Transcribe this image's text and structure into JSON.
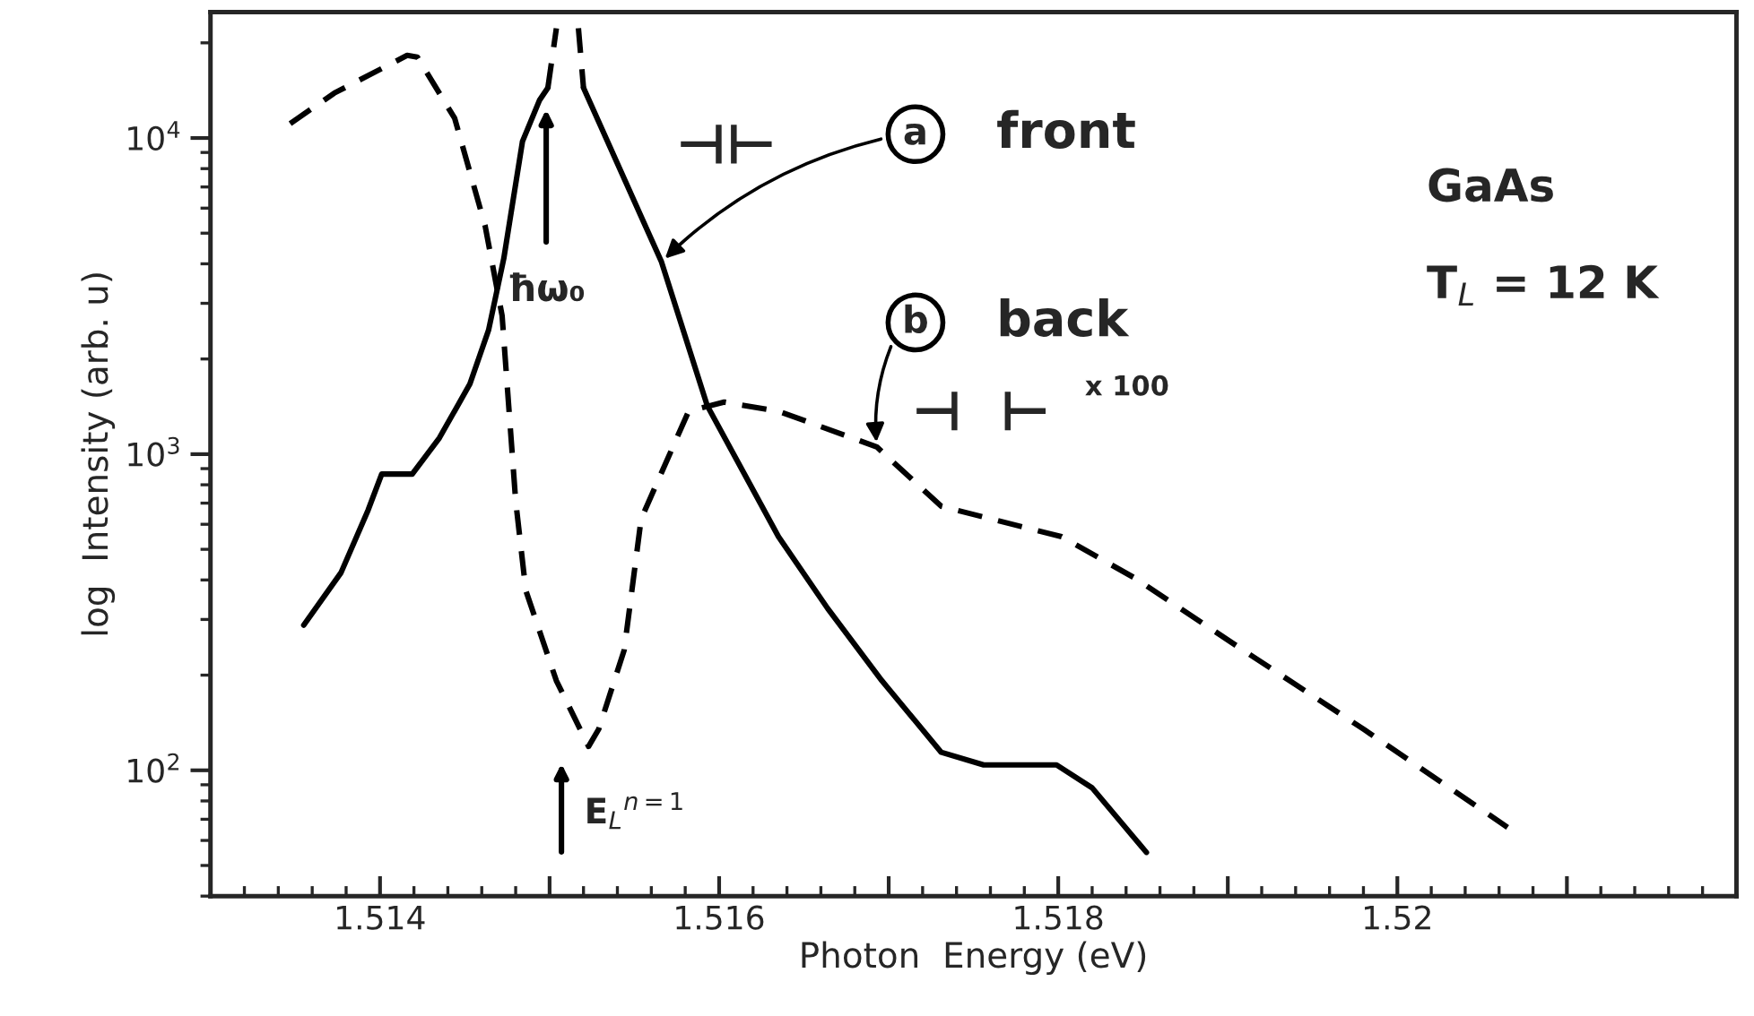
{
  "chart_data": {
    "type": "line",
    "xlabel": "Photon  Energy (eV)",
    "ylabel": "log  Intensity (arb. u)",
    "log": "y",
    "xlim": [
      1.513,
      1.522
    ],
    "ylim": [
      40,
      25000
    ],
    "xticks": [
      1.514,
      {
        "value": 1.515,
        "label": null
      },
      1.516,
      {
        "value": 1.517,
        "label": null
      },
      1.518,
      {
        "value": 1.519,
        "label": null
      },
      1.52,
      {
        "value": 1.521,
        "label": null
      }
    ],
    "yticks": [
      {
        "value": 100,
        "label": "10$^{2}$"
      },
      {
        "value": 1000,
        "label": "10$^{3}$"
      },
      {
        "value": 10000,
        "label": "10$^{4}$"
      }
    ],
    "grid": false,
    "legend": false,
    "marker": "none",
    "series": [
      {
        "color": "#000000",
        "line_style": "solid",
        "x": [
          1.51355,
          1.51377,
          1.51393,
          1.51401,
          1.51419,
          1.51435,
          1.51453,
          1.51464,
          1.51473,
          1.51484,
          1.51494,
          1.51499,
          null,
          1.5152,
          1.51566,
          1.51593,
          1.51635,
          1.51664,
          1.51696,
          1.51731,
          1.51756,
          1.51799,
          1.5182,
          1.51852
        ],
        "values": [
          288,
          422,
          666,
          865,
          865,
          1125,
          1667,
          2466,
          4160,
          9750,
          13150,
          14420,
          null,
          14420,
          4055,
          1423,
          548,
          325,
          192,
          114,
          104,
          104,
          88,
          55
        ]
      },
      {
        "color": "#000000",
        "line_style": "dashed",
        "x": [
          1.51499,
          1.51504,
          null,
          1.51517,
          1.5152
        ],
        "values": [
          14420,
          22230,
          null,
          22230,
          14420
        ]
      },
      {
        "color": "#000000",
        "line_style": "dashed",
        "x": [
          1.51347,
          1.51373,
          1.51416,
          1.51422,
          1.51444,
          1.51462,
          1.51472,
          1.5148,
          1.51486,
          1.51504,
          1.51523,
          1.51529,
          1.51544,
          1.51554,
          1.51582,
          1.51603,
          1.51635,
          1.51693,
          1.51731,
          1.51802,
          1.51845,
          1.51909,
          1.5198,
          1.52065
        ],
        "values": [
          11100,
          13870,
          18250,
          18030,
          11550,
          5270,
          2740,
          711,
          370,
          192,
          119,
          135,
          240,
          624,
          1367,
          1461,
          1367,
          1054,
          684,
          548,
          406,
          240,
          135,
          66
        ]
      }
    ],
    "annotations": [
      {
        "text": "a",
        "x": 1.51566,
        "y": 4055
      },
      "front",
      {
        "text": "b",
        "x": 1.51693,
        "y": 1054
      },
      "back",
      "x 100",
      "GaAs",
      "T$_{L}$ = 12 K",
      "ħω₀",
      "E$_{L}$$^{n=1}$",
      "⊣⊢",
      "⊣  ⊢"
    ]
  }
}
